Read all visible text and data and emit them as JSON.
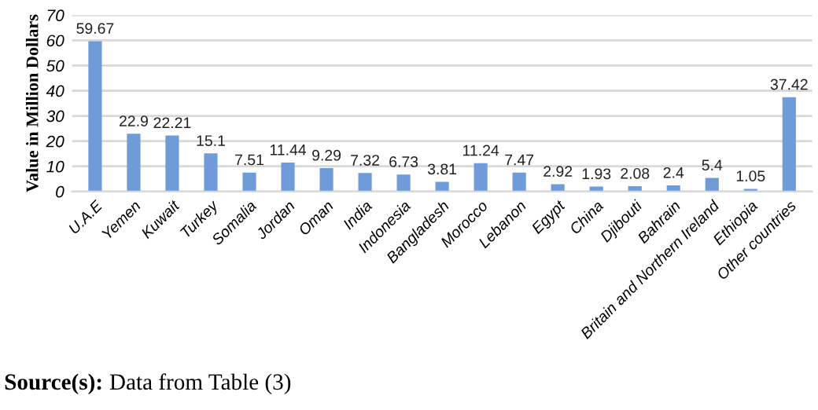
{
  "chart_data": {
    "type": "bar",
    "ylabel": "Value in Million Dollars",
    "categories": [
      "U.A.E",
      "Yemen",
      "Kuwait",
      "Turkey",
      "Somalia",
      "Jordan",
      "Oman",
      "India",
      "Indonesia",
      "Bangladesh",
      "Morocco",
      "Lebanon",
      "Egypt",
      "China",
      "Djibouti",
      "Bahrain",
      "Britain and Northern Ireland",
      "Ethiopia",
      "Other countries"
    ],
    "values": [
      59.67,
      22.9,
      22.21,
      15.1,
      7.51,
      11.44,
      9.29,
      7.32,
      6.73,
      3.81,
      11.24,
      7.47,
      2.92,
      1.93,
      2.08,
      2.4,
      5.4,
      1.05,
      37.42
    ],
    "color": "#6f9bd8",
    "ylim": [
      0,
      70
    ],
    "yticks": [
      0,
      10,
      20,
      30,
      40,
      50,
      60,
      70
    ],
    "grid": "y",
    "data_labels": true,
    "annotations": [
      "Source(s): Data from Table (3)"
    ]
  }
}
